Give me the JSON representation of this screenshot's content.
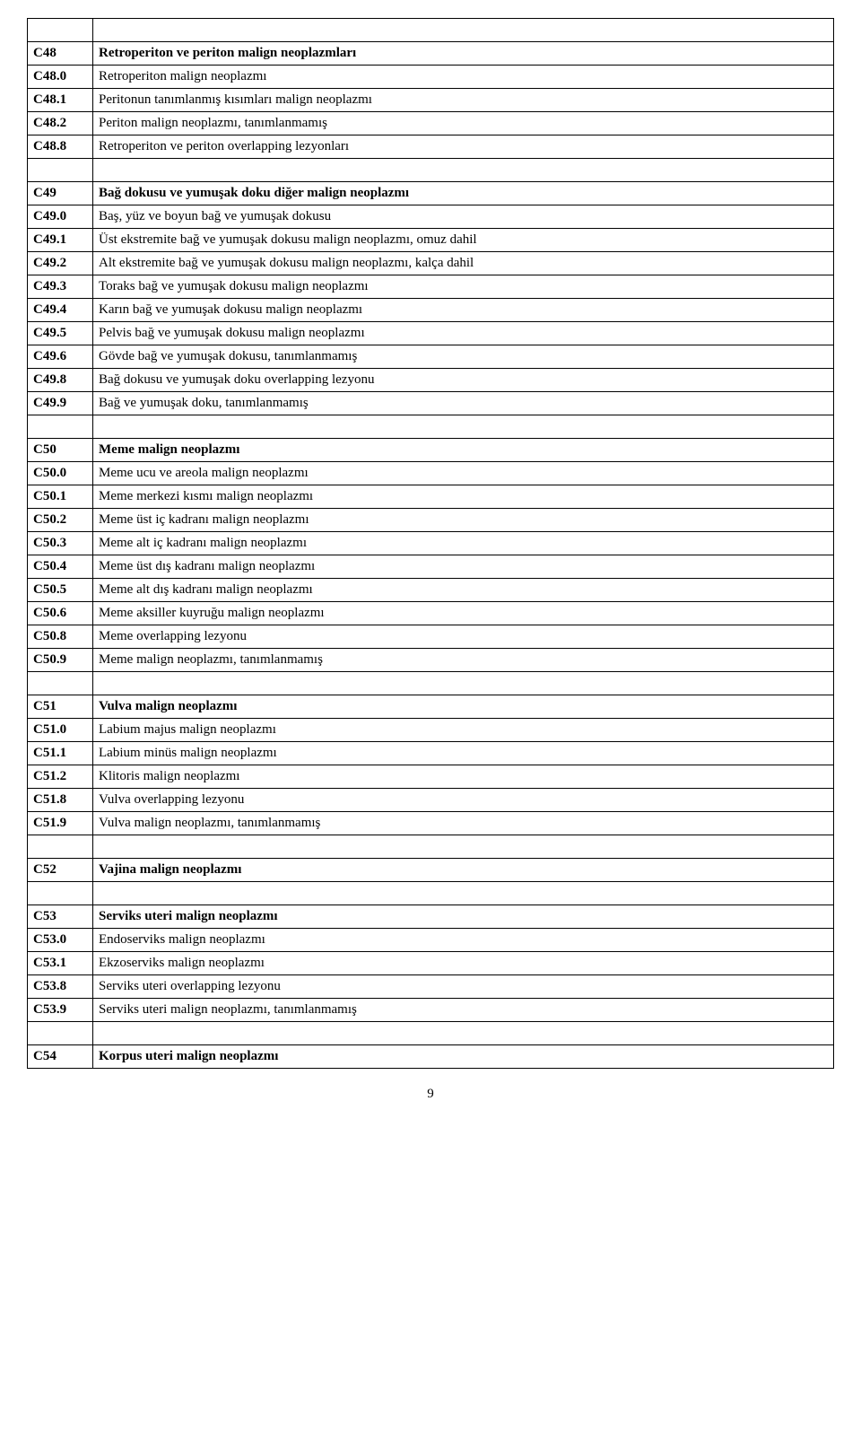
{
  "rows": [
    {
      "code": "",
      "desc": "",
      "bold": false,
      "spacer": true
    },
    {
      "code": "C48",
      "desc": "Retroperiton ve periton malign neoplazmları",
      "bold": true
    },
    {
      "code": "C48.0",
      "desc": "Retroperiton malign neoplazmı",
      "bold": false
    },
    {
      "code": "C48.1",
      "desc": "Peritonun tanımlanmış kısımları malign neoplazmı",
      "bold": false
    },
    {
      "code": "C48.2",
      "desc": "Periton malign neoplazmı, tanımlanmamış",
      "bold": false
    },
    {
      "code": "C48.8",
      "desc": "Retroperiton ve periton overlapping lezyonları",
      "bold": false
    },
    {
      "code": "",
      "desc": "",
      "bold": false,
      "spacer": true
    },
    {
      "code": "C49",
      "desc": "Bağ dokusu ve yumuşak doku diğer malign neoplazmı",
      "bold": true
    },
    {
      "code": "C49.0",
      "desc": "Baş, yüz ve boyun bağ ve yumuşak dokusu",
      "bold": false
    },
    {
      "code": "C49.1",
      "desc": "Üst ekstremite bağ ve yumuşak dokusu malign neoplazmı, omuz dahil",
      "bold": false
    },
    {
      "code": "C49.2",
      "desc": "Alt ekstremite bağ ve yumuşak dokusu malign neoplazmı, kalça dahil",
      "bold": false
    },
    {
      "code": "C49.3",
      "desc": "Toraks bağ ve yumuşak dokusu malign neoplazmı",
      "bold": false
    },
    {
      "code": "C49.4",
      "desc": "Karın bağ ve yumuşak dokusu malign neoplazmı",
      "bold": false
    },
    {
      "code": "C49.5",
      "desc": "Pelvis bağ ve yumuşak dokusu malign neoplazmı",
      "bold": false
    },
    {
      "code": "C49.6",
      "desc": "Gövde bağ ve yumuşak dokusu, tanımlanmamış",
      "bold": false
    },
    {
      "code": "C49.8",
      "desc": "Bağ dokusu ve yumuşak doku overlapping lezyonu",
      "bold": false
    },
    {
      "code": "C49.9",
      "desc": "Bağ ve yumuşak doku, tanımlanmamış",
      "bold": false
    },
    {
      "code": "",
      "desc": "",
      "bold": false,
      "spacer": true
    },
    {
      "code": "C50",
      "desc": "Meme malign neoplazmı",
      "bold": true
    },
    {
      "code": "C50.0",
      "desc": "Meme ucu ve areola malign neoplazmı",
      "bold": false
    },
    {
      "code": "C50.1",
      "desc": "Meme merkezi kısmı malign neoplazmı",
      "bold": false
    },
    {
      "code": "C50.2",
      "desc": "Meme üst iç kadranı malign neoplazmı",
      "bold": false
    },
    {
      "code": "C50.3",
      "desc": "Meme alt iç kadranı malign neoplazmı",
      "bold": false
    },
    {
      "code": "C50.4",
      "desc": "Meme üst dış kadranı malign neoplazmı",
      "bold": false
    },
    {
      "code": "C50.5",
      "desc": "Meme alt dış kadranı malign neoplazmı",
      "bold": false
    },
    {
      "code": "C50.6",
      "desc": "Meme aksiller kuyruğu malign neoplazmı",
      "bold": false
    },
    {
      "code": "C50.8",
      "desc": "Meme overlapping lezyonu",
      "bold": false
    },
    {
      "code": "C50.9",
      "desc": "Meme malign neoplazmı, tanımlanmamış",
      "bold": false
    },
    {
      "code": "",
      "desc": "",
      "bold": false,
      "spacer": true
    },
    {
      "code": "C51",
      "desc": "Vulva malign neoplazmı",
      "bold": true
    },
    {
      "code": "C51.0",
      "desc": "Labium majus malign neoplazmı",
      "bold": false
    },
    {
      "code": "C51.1",
      "desc": "Labium minüs malign neoplazmı",
      "bold": false
    },
    {
      "code": "C51.2",
      "desc": "Klitoris malign neoplazmı",
      "bold": false
    },
    {
      "code": "C51.8",
      "desc": "Vulva overlapping lezyonu",
      "bold": false
    },
    {
      "code": "C51.9",
      "desc": "Vulva malign neoplazmı, tanımlanmamış",
      "bold": false
    },
    {
      "code": "",
      "desc": "",
      "bold": false,
      "spacer": true
    },
    {
      "code": "C52",
      "desc": "Vajina malign neoplazmı",
      "bold": true
    },
    {
      "code": "",
      "desc": "",
      "bold": false,
      "spacer": true
    },
    {
      "code": "C53",
      "desc": "Serviks uteri malign neoplazmı",
      "bold": true
    },
    {
      "code": "C53.0",
      "desc": "Endoserviks malign neoplazmı",
      "bold": false
    },
    {
      "code": "C53.1",
      "desc": "Ekzoserviks malign neoplazmı",
      "bold": false
    },
    {
      "code": "C53.8",
      "desc": "Serviks uteri overlapping lezyonu",
      "bold": false
    },
    {
      "code": "C53.9",
      "desc": "Serviks uteri malign neoplazmı, tanımlanmamış",
      "bold": false
    },
    {
      "code": "",
      "desc": "",
      "bold": false,
      "spacer": true
    },
    {
      "code": "C54",
      "desc": "Korpus uteri malign neoplazmı",
      "bold": true
    }
  ],
  "page_number": "9"
}
